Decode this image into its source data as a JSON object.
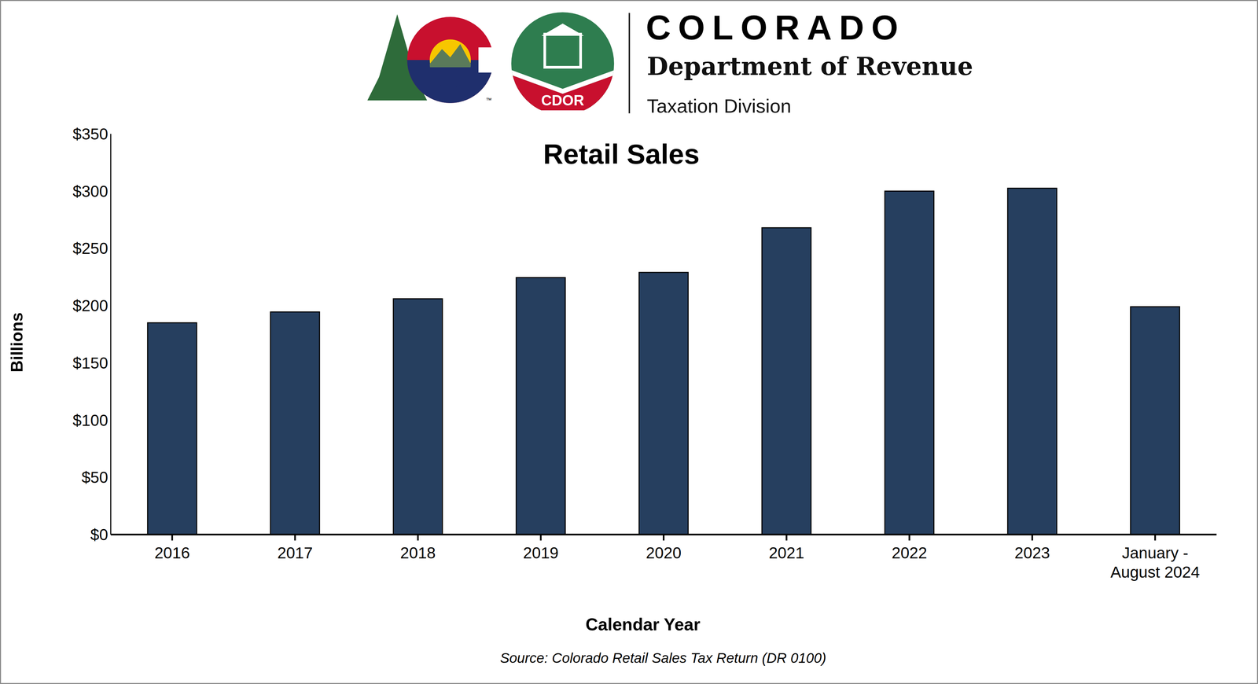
{
  "header": {
    "brand": "COLORADO",
    "department": "Department of Revenue",
    "division": "Taxation Division",
    "badge": "CDOR",
    "trademark": "™"
  },
  "chart_data": {
    "type": "bar",
    "title": "Retail Sales",
    "x_label": "Calendar Year",
    "y_label": "Billions",
    "source": "Source: Colorado Retail Sales Tax Return (DR 0100)",
    "categories": [
      "2016",
      "2017",
      "2018",
      "2019",
      "2020",
      "2021",
      "2022",
      "2023",
      "January -\nAugust 2024"
    ],
    "values": [
      185,
      194.5,
      206,
      224.5,
      229,
      268,
      300,
      302.5,
      199
    ],
    "color": "#263f5f",
    "ylim": [
      0,
      350
    ],
    "yticks": [
      {
        "value": 0,
        "label": "$0"
      },
      {
        "value": 50,
        "label": "$50"
      },
      {
        "value": 100,
        "label": "$100"
      },
      {
        "value": 150,
        "label": "$150"
      },
      {
        "value": 200,
        "label": "$200"
      },
      {
        "value": 250,
        "label": "$250"
      },
      {
        "value": 300,
        "label": "$300"
      },
      {
        "value": 350,
        "label": "$350"
      }
    ],
    "grid": false
  }
}
